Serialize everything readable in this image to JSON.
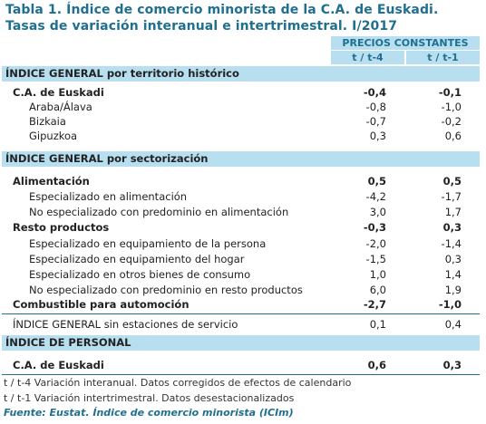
{
  "title": {
    "line1": "Tabla 1. Índice de comercio minorista de la C.A. de Euskadi.",
    "line2": "Tasas de variación interanual e intertrimestral. I/2017"
  },
  "header": {
    "group": "PRECIOS CONSTANTES",
    "col1": "t / t-4",
    "col2": "t / t-1"
  },
  "sections": {
    "territorio": "ÍNDICE GENERAL por territorio histórico",
    "sector": "ÍNDICE GENERAL por sectorización",
    "personal": "ÍNDICE DE PERSONAL"
  },
  "rows": [
    {
      "label": "C.A. de Euskadi",
      "v1": "-0,4",
      "v2": "-0,1"
    },
    {
      "label": "Araba/Álava",
      "v1": "-0,8",
      "v2": "-1,0"
    },
    {
      "label": "Bizkaia",
      "v1": "-0,7",
      "v2": "-0,2"
    },
    {
      "label": "Gipuzkoa",
      "v1": "0,3",
      "v2": "0,6"
    },
    {
      "label": "Alimentación",
      "v1": "0,5",
      "v2": "0,5"
    },
    {
      "label": "Especializado en alimentación",
      "v1": "-4,2",
      "v2": "-1,7"
    },
    {
      "label": "No especializado con predominio en alimentación",
      "v1": "3,0",
      "v2": "1,7"
    },
    {
      "label": "Resto productos",
      "v1": "-0,3",
      "v2": "0,3"
    },
    {
      "label": "Especializado en equipamiento de la persona",
      "v1": "-2,0",
      "v2": "-1,4"
    },
    {
      "label": "Especializado en equipamiento del hogar",
      "v1": "-1,5",
      "v2": "0,3"
    },
    {
      "label": "Especializado en otros bienes de consumo",
      "v1": "1,0",
      "v2": "1,4"
    },
    {
      "label": "No especializado con predominio en resto productos",
      "v1": "6,0",
      "v2": "1,9"
    },
    {
      "label": "Combustible para automoción",
      "v1": "-2,7",
      "v2": "-1,0"
    },
    {
      "label": "ÍNDICE GENERAL sin estaciones de servicio",
      "v1": "0,1",
      "v2": "0,4"
    },
    {
      "label": "C.A. de Euskadi",
      "v1": "0,6",
      "v2": "0,3"
    }
  ],
  "notes": [
    "t / t-4 Variación interanual. Datos corregidos de efectos de calendario",
    "t / t-1 Variación intertrimestral. Datos desestacionalizados"
  ],
  "source": "Fuente: Eustat. Índice de comercio minorista (ICIm)"
}
